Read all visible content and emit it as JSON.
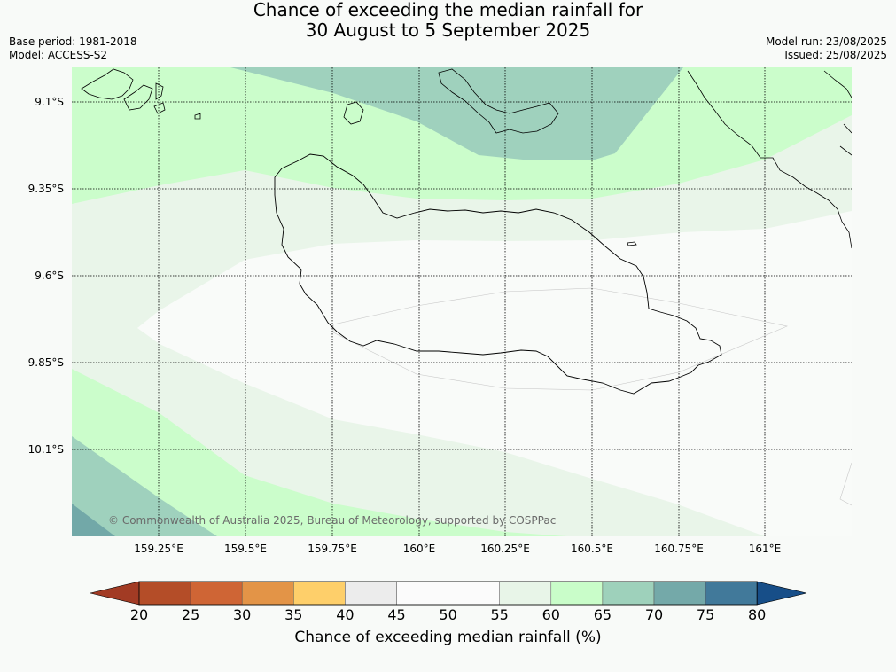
{
  "title_line1": "Chance of exceeding the median rainfall for",
  "title_line2": "30 August to 5 September 2025",
  "base_period": "Base period: 1981-2018",
  "model": "Model: ACCESS-S2",
  "model_run": "Model run: 23/08/2025",
  "issued": "Issued: 25/08/2025",
  "lat_ticks": [
    "9.1°S",
    "9.35°S",
    "9.6°S",
    "9.85°S",
    "10.1°S"
  ],
  "lon_ticks": [
    "159.25°E",
    "159.5°E",
    "159.75°E",
    "160°E",
    "160.25°E",
    "160.5°E",
    "160.75°E",
    "161°E"
  ],
  "colorbar": {
    "labels": [
      "20",
      "25",
      "30",
      "35",
      "40",
      "45",
      "50",
      "55",
      "60",
      "65",
      "70",
      "75",
      "80"
    ],
    "colors": [
      "#a23b24",
      "#b44d28",
      "#cf6535",
      "#e39447",
      "#fecf6a",
      "#ececec",
      "#fbfbfb",
      "#fbfbfb",
      "#e8f5e8",
      "#c9fdc9",
      "#9ed1bb",
      "#74a9a9",
      "#41799a",
      "#174e88"
    ],
    "title": "Chance of exceeding median rainfall (%)"
  },
  "copyright": "© Commonwealth of Australia 2025, Bureau of Meteorology, supported by COSPPac"
}
